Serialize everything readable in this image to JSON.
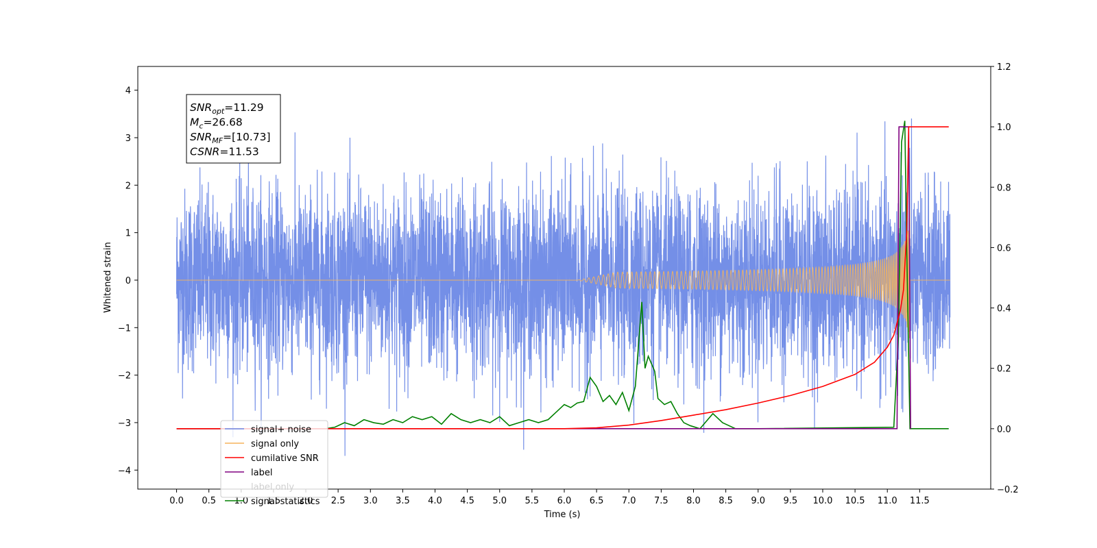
{
  "chart_data": {
    "type": "line",
    "xlabel": "Time (s)",
    "ylabel": "Whitened strain",
    "xlim": [
      -0.6,
      12.6
    ],
    "ylim": [
      -4.4,
      4.5
    ],
    "ylim_right": [
      -0.2,
      1.2
    ],
    "x_ticks": [
      "0.0",
      "0.5",
      "1.0",
      "1.5",
      "2.0",
      "2.5",
      "3.0",
      "3.5",
      "4.0",
      "4.5",
      "5.0",
      "5.5",
      "6.0",
      "6.5",
      "7.0",
      "7.5",
      "8.0",
      "8.5",
      "9.0",
      "9.5",
      "10.0",
      "10.5",
      "11.0",
      "11.5"
    ],
    "y_ticks_left": [
      "4",
      "3",
      "2",
      "1",
      "0",
      "−1",
      "−2",
      "−3",
      "−4"
    ],
    "y_ticks_right": [
      "1.2",
      "1.0",
      "0.8",
      "0.6",
      "0.4",
      "0.2",
      "0.0",
      "−0.2"
    ],
    "grid": false,
    "legend_placement": "lower-left",
    "annotation": {
      "lines": [
        {
          "sym": "SNR",
          "sub": "opt",
          "val": "=11.29"
        },
        {
          "sym": "M",
          "sub": "c",
          "val": "=26.68"
        },
        {
          "sym": "SNR",
          "sub": "MF",
          "val": "=[10.73]"
        },
        {
          "sym": "CSNR",
          "sub": "",
          "val": "=11.53"
        }
      ]
    },
    "series": [
      {
        "name": "signal+ noise",
        "axis": "left",
        "color": "#6d89e6",
        "description_range": [
          -3.7,
          4.1
        ]
      },
      {
        "name": "signal only",
        "axis": "left",
        "color": "#f5b45a",
        "peak_time": 11.35,
        "peak_amplitude": 2.8
      },
      {
        "name": "cumilative SNR",
        "axis": "right",
        "color": "#ff0000",
        "x": [
          0,
          6.0,
          6.5,
          7.0,
          7.5,
          8.0,
          8.5,
          9.0,
          9.5,
          10.0,
          10.5,
          10.8,
          11.0,
          11.1,
          11.2,
          11.25,
          11.3,
          11.33,
          11.4,
          11.95
        ],
        "y": [
          0,
          0.0,
          0.003,
          0.012,
          0.027,
          0.045,
          0.063,
          0.085,
          0.11,
          0.14,
          0.18,
          0.22,
          0.27,
          0.31,
          0.39,
          0.46,
          0.65,
          1.0,
          1.0,
          1.0
        ]
      },
      {
        "name": "label",
        "axis": "right",
        "color": "#800080",
        "x": [
          0,
          11.15,
          11.18,
          11.33,
          11.36
        ],
        "y": [
          0,
          0,
          1,
          1,
          0
        ]
      },
      {
        "name": "label only",
        "axis": "right",
        "color": "#cccccc",
        "hidden": true
      },
      {
        "name": "signal statistics",
        "axis": "right",
        "color": "#008000",
        "x": [
          0,
          2.3,
          2.45,
          2.6,
          2.75,
          2.9,
          3.05,
          3.2,
          3.35,
          3.5,
          3.65,
          3.8,
          3.95,
          4.1,
          4.25,
          4.4,
          4.55,
          4.7,
          4.85,
          5.0,
          5.15,
          5.3,
          5.45,
          5.6,
          5.75,
          5.9,
          6.0,
          6.1,
          6.2,
          6.3,
          6.4,
          6.5,
          6.6,
          6.7,
          6.8,
          6.9,
          7.0,
          7.1,
          7.2,
          7.25,
          7.3,
          7.4,
          7.45,
          7.55,
          7.65,
          7.75,
          7.85,
          7.95,
          8.1,
          8.3,
          8.45,
          8.55,
          8.65,
          8.8,
          9.0,
          11.1,
          11.17,
          11.22,
          11.27,
          11.3,
          11.35,
          11.4,
          11.95
        ],
        "y": [
          0,
          0,
          0.005,
          0.02,
          0.01,
          0.03,
          0.02,
          0.015,
          0.03,
          0.02,
          0.04,
          0.03,
          0.04,
          0.015,
          0.05,
          0.03,
          0.02,
          0.03,
          0.02,
          0.04,
          0.01,
          0.02,
          0.03,
          0.02,
          0.03,
          0.06,
          0.08,
          0.07,
          0.085,
          0.09,
          0.17,
          0.14,
          0.09,
          0.11,
          0.08,
          0.12,
          0.06,
          0.14,
          0.42,
          0.2,
          0.24,
          0.19,
          0.1,
          0.08,
          0.09,
          0.05,
          0.02,
          0.01,
          0.0,
          0.05,
          0.02,
          0.01,
          0.0,
          0.0,
          0.0,
          0.005,
          0.3,
          0.95,
          1.02,
          0.6,
          0.0,
          0.0,
          0.0
        ]
      }
    ]
  }
}
